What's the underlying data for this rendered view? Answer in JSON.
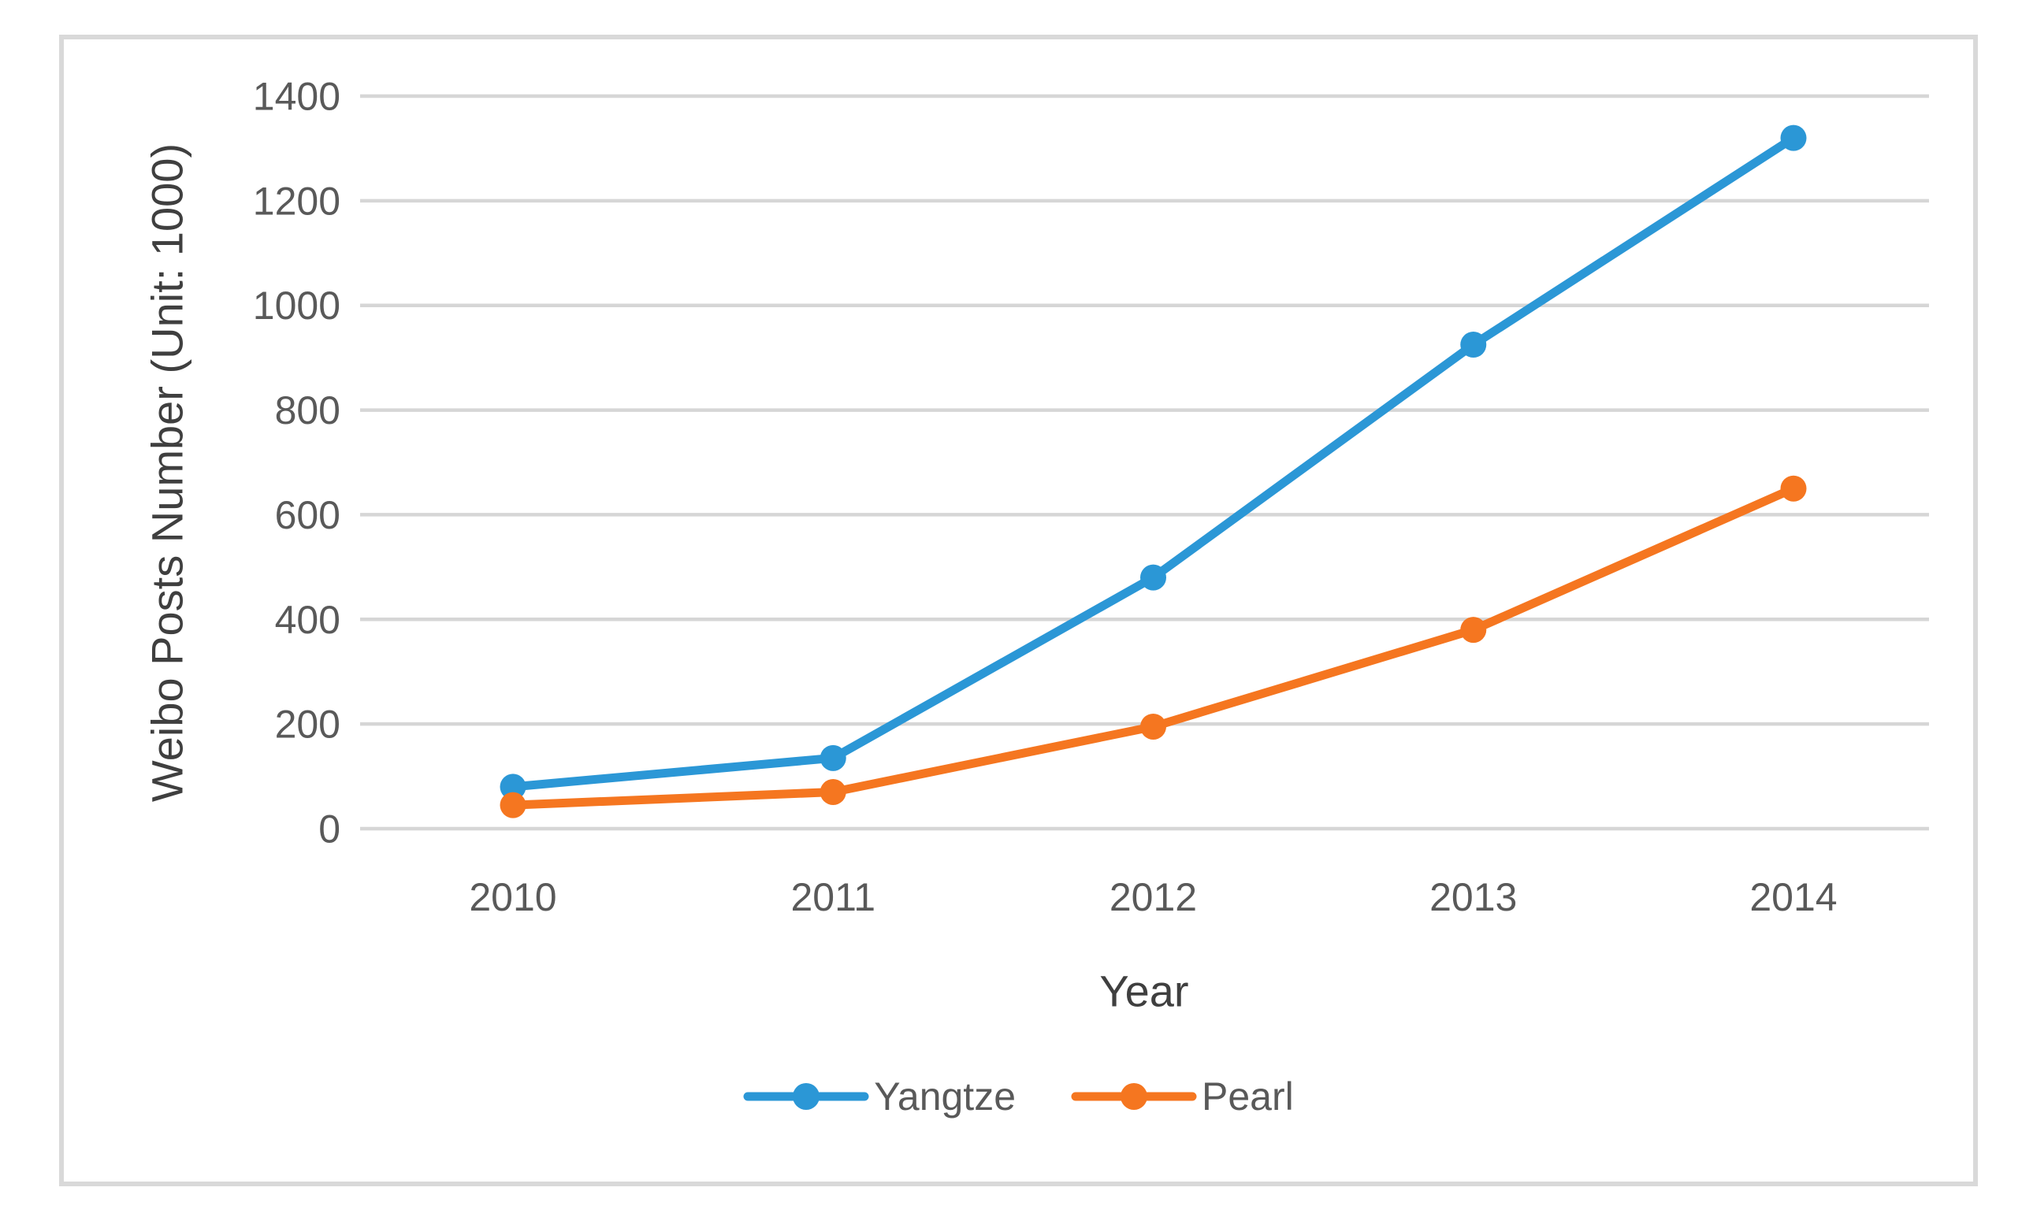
{
  "chart_data": {
    "type": "line",
    "title": "",
    "categories": [
      "2010",
      "2011",
      "2012",
      "2013",
      "2014"
    ],
    "series": [
      {
        "name": "Yangtze",
        "color": "#2B97D6",
        "values": [
          80,
          135,
          480,
          925,
          1320
        ]
      },
      {
        "name": "Pearl",
        "color": "#F57620",
        "values": [
          45,
          70,
          195,
          380,
          650
        ]
      }
    ],
    "xlabel": "Year",
    "ylabel": "Weibo Posts Number (Unit: 1000)",
    "yticks": [
      0,
      200,
      400,
      600,
      800,
      1000,
      1200,
      1400
    ],
    "ylim": [
      0,
      1400
    ],
    "grid": "horizontal-only",
    "legend_position": "bottom-center",
    "marker": "circle",
    "colors": {
      "gridline": "#D6D6D6",
      "tick_text": "#595959",
      "axis_title_text": "#3F3F3F",
      "figure_border": "#D9D9D9",
      "background": "#FFFFFF"
    }
  }
}
